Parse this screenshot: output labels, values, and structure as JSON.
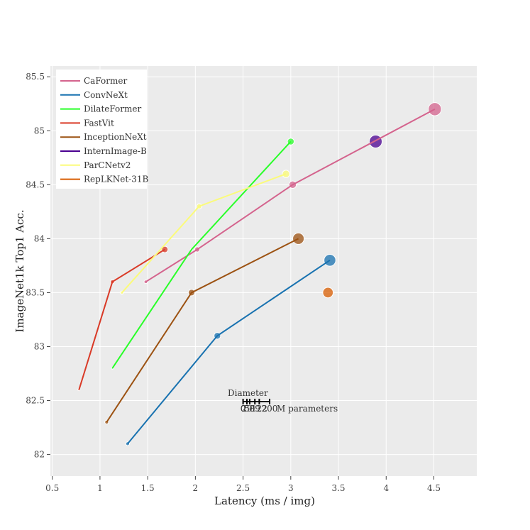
{
  "chart_data": {
    "type": "scatter",
    "title": "",
    "xlabel": "Latency (ms / img)",
    "ylabel": "ImageNet1k Top1 Acc.",
    "xlim": [
      0.48,
      4.95
    ],
    "ylim": [
      81.8,
      85.6
    ],
    "x_ticks": [
      "0.5",
      "1",
      "1.5",
      "2",
      "2.5",
      "3",
      "3.5",
      "4",
      "4.5"
    ],
    "y_ticks": [
      "82",
      "82.5",
      "83",
      "83.5",
      "84",
      "84.5",
      "85",
      "85.5"
    ],
    "grid": true,
    "legend_position": "top-left",
    "series": [
      {
        "name": "CaFormer",
        "color": "#d4638d",
        "line": true,
        "points": [
          {
            "x": 1.48,
            "y": 83.6,
            "params": 26
          },
          {
            "x": 2.02,
            "y": 83.9,
            "params": 39
          },
          {
            "x": 3.02,
            "y": 84.5,
            "params": 56
          },
          {
            "x": 4.51,
            "y": 85.2,
            "params": 99
          }
        ]
      },
      {
        "name": "ConvNeXt",
        "color": "#1872b0",
        "line": true,
        "points": [
          {
            "x": 1.29,
            "y": 82.1,
            "params": 28
          },
          {
            "x": 2.23,
            "y": 83.1,
            "params": 50
          },
          {
            "x": 3.41,
            "y": 83.8,
            "params": 89
          }
        ]
      },
      {
        "name": "DilateFormer",
        "color": "#28ff28",
        "line": true,
        "points": [
          {
            "x": 1.13,
            "y": 82.8,
            "params": 15
          },
          {
            "x": 1.96,
            "y": 83.9,
            "params": 17
          },
          {
            "x": 3.0,
            "y": 84.9,
            "params": 51
          }
        ]
      },
      {
        "name": "FastVit",
        "color": "#d93a27",
        "line": true,
        "points": [
          {
            "x": 0.78,
            "y": 82.6,
            "params": 15
          },
          {
            "x": 1.13,
            "y": 83.6,
            "params": 30
          },
          {
            "x": 1.68,
            "y": 83.9,
            "params": 48
          }
        ]
      },
      {
        "name": "InceptionNeXt",
        "color": "#9c5212",
        "line": true,
        "points": [
          {
            "x": 1.07,
            "y": 82.3,
            "params": 28
          },
          {
            "x": 1.96,
            "y": 83.5,
            "params": 49
          },
          {
            "x": 3.08,
            "y": 84.0,
            "params": 86
          }
        ]
      },
      {
        "name": "InternImage-B",
        "color": "#4a0090",
        "line": false,
        "points": [
          {
            "x": 3.89,
            "y": 84.9,
            "params": 97
          }
        ]
      },
      {
        "name": "ParCNetv2",
        "color": "#fbfb7a",
        "line": true,
        "points": [
          {
            "x": 1.23,
            "y": 83.5,
            "params": 24
          },
          {
            "x": 2.04,
            "y": 84.3,
            "params": 39
          },
          {
            "x": 2.95,
            "y": 84.6,
            "params": 56
          }
        ]
      },
      {
        "name": "RepLKNet-31B",
        "color": "#d85c00",
        "line": false,
        "points": [
          {
            "x": 3.39,
            "y": 83.5,
            "params": 79
          }
        ]
      }
    ],
    "size_scale": {
      "title": "Diameter",
      "ticks": [
        "0",
        "29",
        "50",
        "89",
        "122",
        "200"
      ],
      "unit": "M parameters"
    }
  }
}
